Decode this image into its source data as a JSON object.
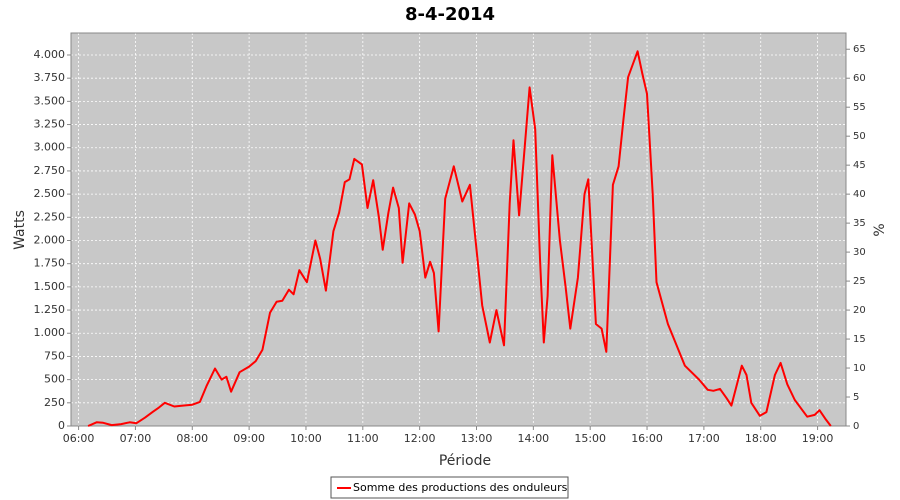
{
  "chart_data": {
    "type": "line",
    "title": "8-4-2014",
    "x_label": "Période",
    "y_label": "Watts",
    "y2_label": "%",
    "x": [
      "06:10",
      "06:19",
      "06:26",
      "06:35",
      "06:45",
      "06:54",
      "07:01",
      "07:10",
      "07:18",
      "07:25",
      "07:31",
      "07:41",
      "07:50",
      "08:00",
      "08:08",
      "08:15",
      "08:24",
      "08:31",
      "08:36",
      "08:41",
      "08:50",
      "09:00",
      "09:07",
      "09:14",
      "09:22",
      "09:29",
      "09:35",
      "09:42",
      "09:47",
      "09:53",
      "10:01",
      "10:10",
      "10:15",
      "10:21",
      "10:29",
      "10:35",
      "10:41",
      "10:46",
      "10:51",
      "10:59",
      "11:05",
      "11:11",
      "11:17",
      "11:21",
      "11:27",
      "11:32",
      "11:38",
      "11:42",
      "11:49",
      "11:55",
      "12:00",
      "12:06",
      "12:11",
      "12:15",
      "12:20",
      "12:27",
      "12:36",
      "12:45",
      "12:53",
      "12:59",
      "13:06",
      "13:14",
      "13:21",
      "13:29",
      "13:35",
      "13:39",
      "13:45",
      "13:56",
      "14:02",
      "14:07",
      "14:11",
      "14:15",
      "14:20",
      "14:28",
      "14:34",
      "14:39",
      "14:47",
      "14:54",
      "14:58",
      "15:06",
      "15:12",
      "15:17",
      "15:24",
      "15:30",
      "15:35",
      "15:40",
      "15:45",
      "15:50",
      "15:55",
      "16:00",
      "16:06",
      "16:10",
      "16:22",
      "16:40",
      "16:55",
      "17:04",
      "17:10",
      "17:17",
      "17:24",
      "17:29",
      "17:40",
      "17:45",
      "17:50",
      "17:59",
      "18:06",
      "18:15",
      "18:21",
      "18:28",
      "18:36",
      "18:49",
      "18:57",
      "19:02",
      "19:08",
      "19:14"
    ],
    "series": [
      {
        "name": "Somme des productions des onduleurs",
        "color": "#ff0000",
        "values": [
          0,
          40,
          35,
          10,
          20,
          40,
          30,
          90,
          150,
          200,
          250,
          210,
          220,
          230,
          260,
          430,
          620,
          500,
          530,
          370,
          580,
          640,
          700,
          820,
          1220,
          1340,
          1350,
          1470,
          1420,
          1680,
          1550,
          2000,
          1800,
          1460,
          2100,
          2300,
          2630,
          2660,
          2880,
          2820,
          2350,
          2650,
          2250,
          1900,
          2300,
          2570,
          2350,
          1760,
          2400,
          2280,
          2100,
          1600,
          1770,
          1650,
          1020,
          2450,
          2800,
          2420,
          2600,
          2000,
          1300,
          900,
          1250,
          870,
          2400,
          3080,
          2270,
          3650,
          3200,
          1800,
          900,
          1400,
          2920,
          2000,
          1500,
          1050,
          1600,
          2500,
          2660,
          1100,
          1050,
          800,
          2600,
          2800,
          3300,
          3760,
          3900,
          4040,
          3800,
          3580,
          2500,
          1550,
          1100,
          650,
          500,
          390,
          380,
          400,
          300,
          220,
          650,
          550,
          250,
          110,
          150,
          550,
          680,
          450,
          280,
          100,
          120,
          170,
          80,
          0
        ]
      }
    ],
    "xlim": [
      "05:52",
      "19:30"
    ],
    "xticks": [
      "06:00",
      "07:00",
      "08:00",
      "09:00",
      "10:00",
      "11:00",
      "12:00",
      "13:00",
      "14:00",
      "15:00",
      "16:00",
      "17:00",
      "18:00",
      "19:00"
    ],
    "ylim": [
      0,
      4237
    ],
    "yticks": [
      0,
      250,
      500,
      750,
      {
        "value": 1000,
        "label": "1.000"
      },
      {
        "value": 1250,
        "label": "1.250"
      },
      {
        "value": 1500,
        "label": "1.500"
      },
      {
        "value": 1750,
        "label": "1.750"
      },
      {
        "value": 2000,
        "label": "2.000"
      },
      {
        "value": 2250,
        "label": "2.250"
      },
      {
        "value": 2500,
        "label": "2.500"
      },
      {
        "value": 2750,
        "label": "2.750"
      },
      {
        "value": 3000,
        "label": "3.000"
      },
      {
        "value": 3250,
        "label": "3.250"
      },
      {
        "value": 3500,
        "label": "3.500"
      },
      {
        "value": 3750,
        "label": "3.750"
      },
      {
        "value": 4000,
        "label": "4.000"
      }
    ],
    "y2lim": [
      0,
      67.8
    ],
    "y2ticks": [
      0,
      5,
      10,
      15,
      20,
      25,
      30,
      35,
      40,
      45,
      50,
      55,
      60,
      65
    ],
    "grid": true,
    "legend": "bottom"
  }
}
